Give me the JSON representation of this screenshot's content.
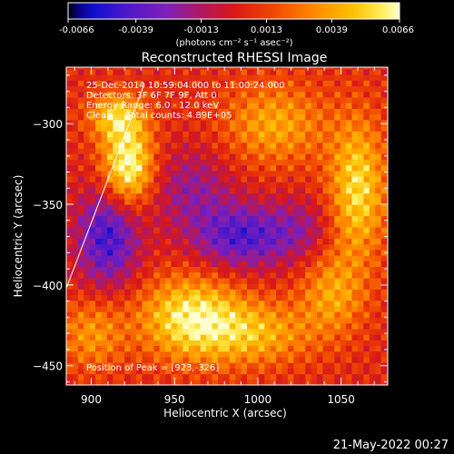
{
  "chart_data": {
    "type": "heatmap",
    "title": "Reconstructed RHESSI Image",
    "xlabel": "Heliocentric X (arcsec)",
    "ylabel": "Heliocentric Y (arcsec)",
    "xlim": [
      885,
      1078
    ],
    "ylim": [
      -462,
      -265
    ],
    "x_ticks": [
      900,
      950,
      1000,
      1050
    ],
    "y_ticks": [
      -300,
      -350,
      -400,
      -450
    ],
    "colorbar": {
      "min": -0.0066,
      "max": 0.0066,
      "ticks": [
        "-0.0066",
        "-0.0039",
        "-0.0013",
        "0.0013",
        "0.0039",
        "0.0066"
      ],
      "label": "(photons cm⁻² s⁻¹ asec⁻²)"
    },
    "annotations": [
      "25-Dec-2014 10:59:04.000 to 11:00:24.000",
      "Detectors: 3F 6F 7F 9F, Att 0",
      "Energy Range: 6.0 - 12.0 keV",
      "Clean     Total counts: 4.89E+05"
    ],
    "peak_text": "Position of Peak = [923,-326]",
    "limb_line": {
      "x": [
        885,
        932
      ],
      "y": [
        -402,
        -275
      ]
    },
    "sources": [
      {
        "x": 922,
        "y": -326,
        "value": 0.0066,
        "sx": 11,
        "sy": 18
      },
      {
        "x": 915,
        "y": -295,
        "value": 0.0042,
        "sx": 12,
        "sy": 10
      },
      {
        "x": 960,
        "y": -420,
        "value": 0.0055,
        "sx": 22,
        "sy": 18
      },
      {
        "x": 1000,
        "y": -430,
        "value": 0.0035,
        "sx": 24,
        "sy": 14
      },
      {
        "x": 1060,
        "y": -340,
        "value": 0.005,
        "sx": 12,
        "sy": 30
      },
      {
        "x": 1010,
        "y": -300,
        "value": 0.0035,
        "sx": 22,
        "sy": 18
      },
      {
        "x": 1045,
        "y": -405,
        "value": 0.0032,
        "sx": 14,
        "sy": 18
      },
      {
        "x": 900,
        "y": -430,
        "value": 0.003,
        "sx": 14,
        "sy": 16
      },
      {
        "x": 910,
        "y": -370,
        "value": -0.005,
        "sx": 13,
        "sy": 22
      },
      {
        "x": 990,
        "y": -370,
        "value": -0.0045,
        "sx": 20,
        "sy": 14
      },
      {
        "x": 960,
        "y": -340,
        "value": -0.0025,
        "sx": 18,
        "sy": 18
      },
      {
        "x": 1025,
        "y": -365,
        "value": -0.002,
        "sx": 14,
        "sy": 14
      }
    ]
  },
  "footer": {
    "date": "21-May-2022 00:27"
  }
}
